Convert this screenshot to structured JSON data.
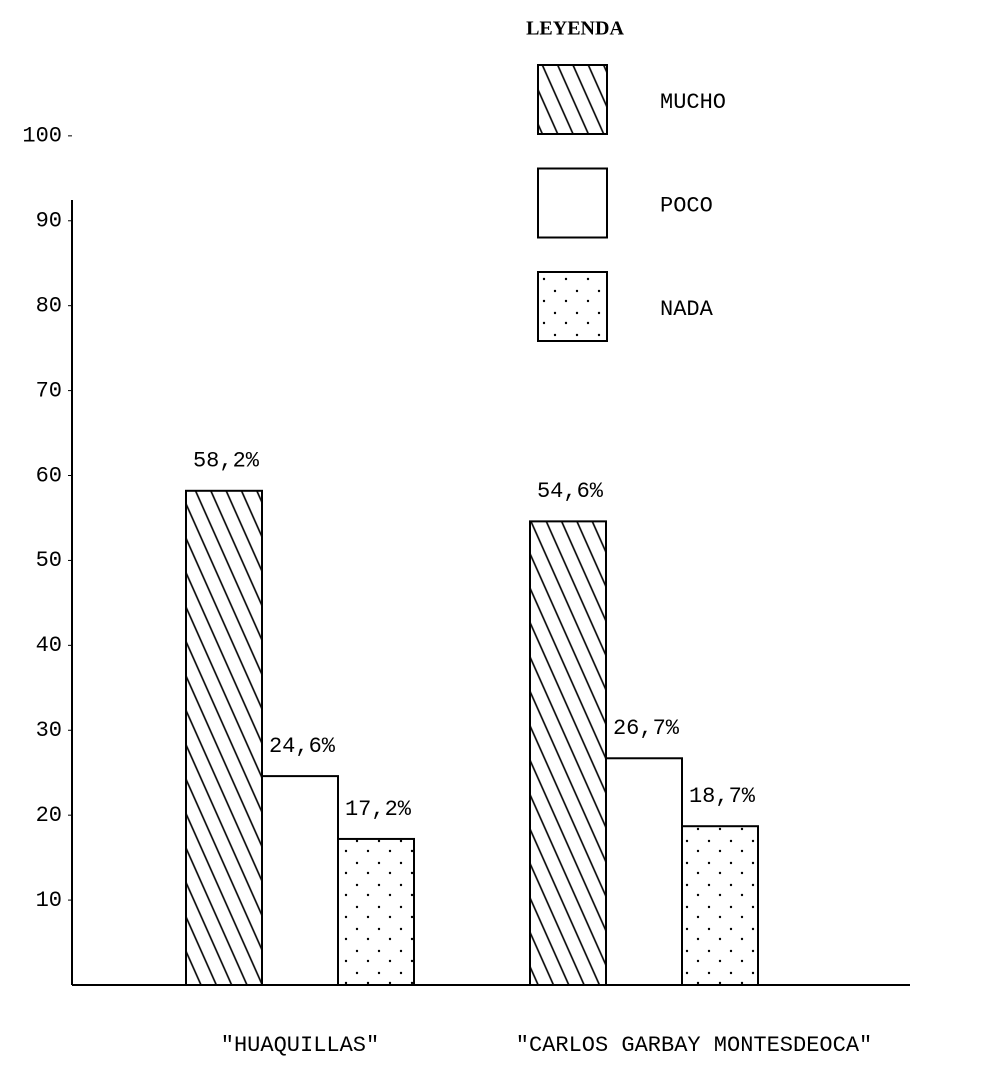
{
  "chart_data": {
    "type": "bar",
    "legend_title": "LEYENDA",
    "categories": [
      "\"HUAQUILLAS\"",
      "\"CARLOS GARBAY MONTESDEOCA\""
    ],
    "series": [
      {
        "name": "MUCHO",
        "color": "#000000",
        "pattern": "hatch",
        "values": [
          58.2,
          54.6
        ],
        "value_labels": [
          "58,2%",
          "54,6%"
        ]
      },
      {
        "name": "POCO",
        "color": "#000000",
        "pattern": "none",
        "values": [
          24.6,
          26.7
        ],
        "value_labels": [
          "24,6%",
          "26,7%"
        ]
      },
      {
        "name": "NADA",
        "color": "#000000",
        "pattern": "dots",
        "values": [
          17.2,
          18.7
        ],
        "value_labels": [
          "17,2%",
          "18,7%"
        ]
      }
    ],
    "ylim": [
      0,
      100
    ],
    "yticks": [
      10,
      20,
      30,
      40,
      50,
      60,
      70,
      80,
      90,
      100
    ],
    "legend": "top-right",
    "grid": false
  }
}
